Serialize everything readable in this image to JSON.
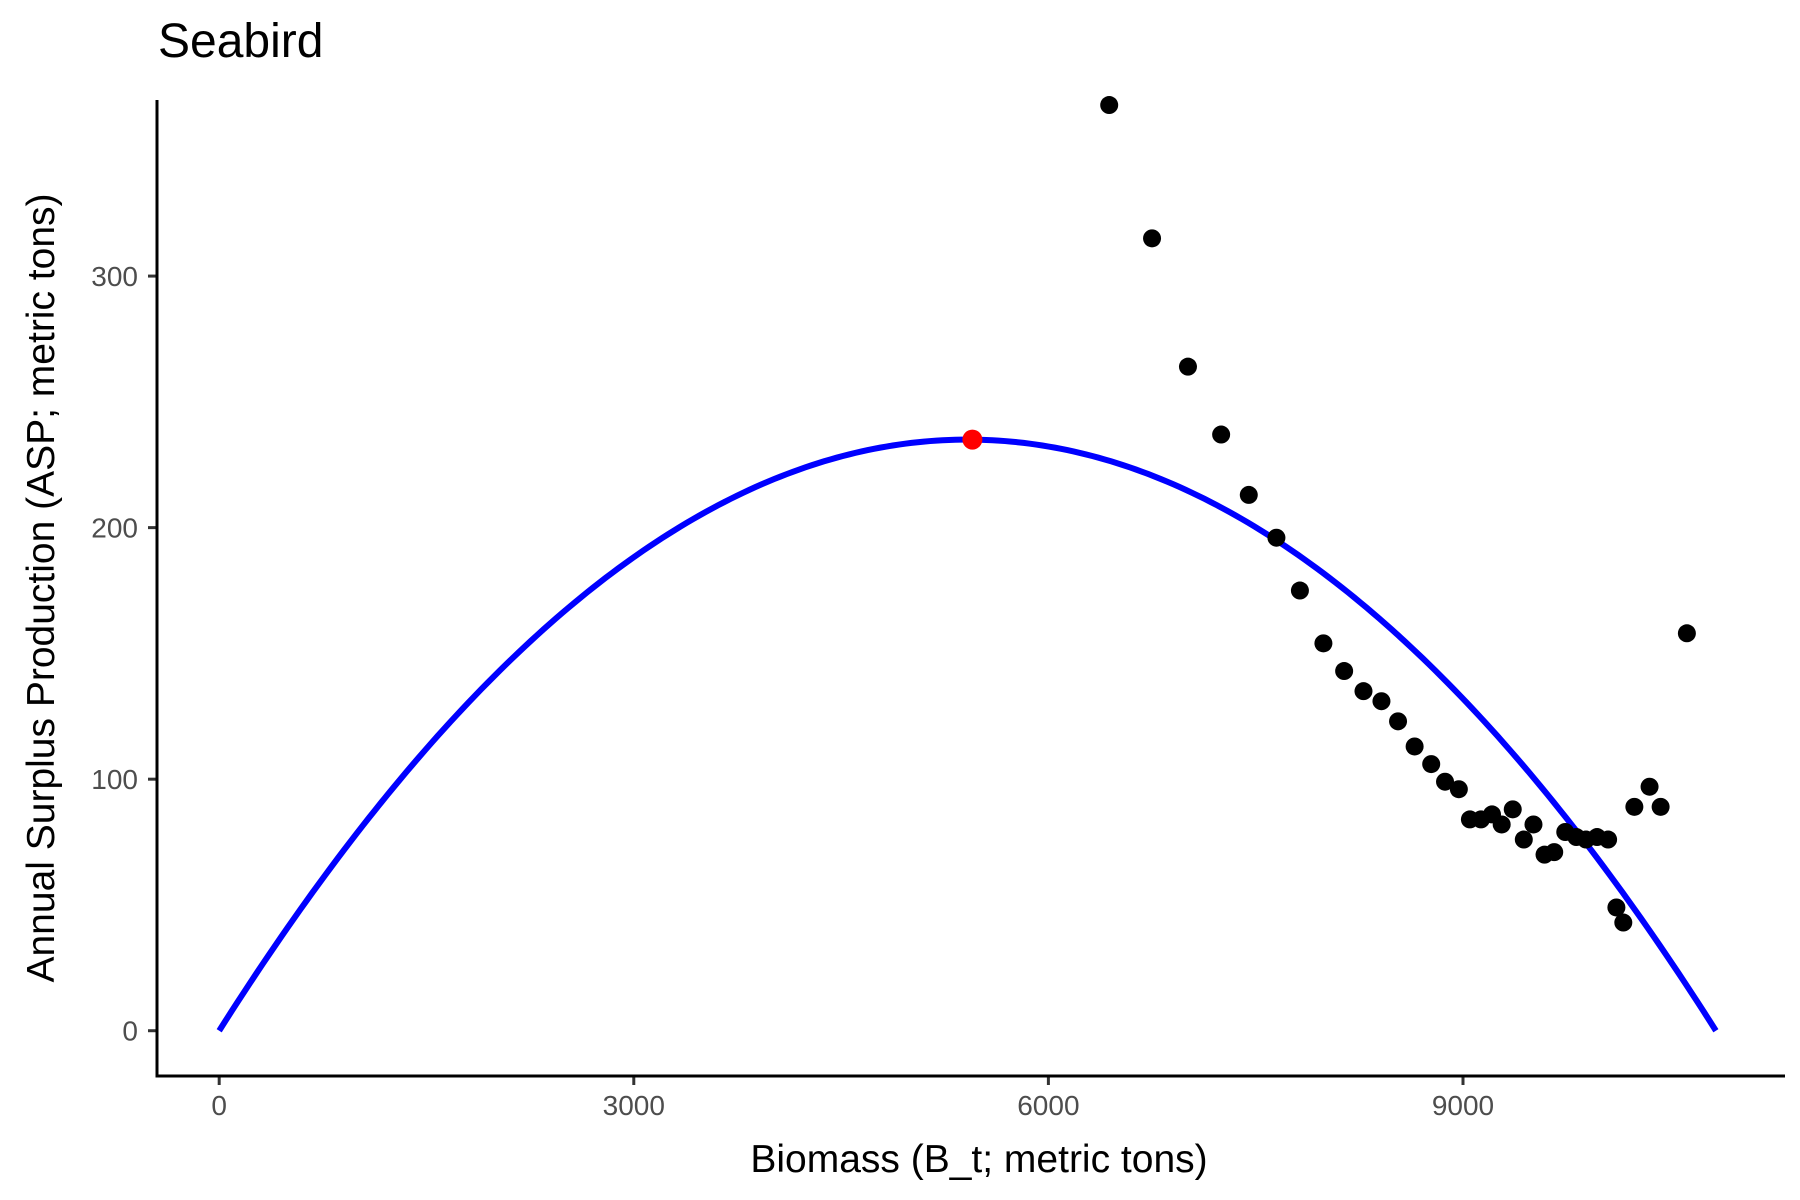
{
  "chart_data": {
    "type": "scatter",
    "title": "Seabird",
    "xlabel": "Biomass (B_t; metric tons)",
    "ylabel": "Annual Surplus Production (ASP; metric tons)",
    "xlim": [
      -450,
      11330
    ],
    "ylim": [
      -18,
      370
    ],
    "x_ticks": [
      0,
      3000,
      6000,
      9000
    ],
    "y_ticks": [
      0,
      100,
      200,
      300
    ],
    "grid": false,
    "curve": {
      "name": "",
      "color": "#0000ff",
      "carrying_capacity": 10830,
      "msy": 235,
      "bmsy": 5415
    },
    "highlight_point": {
      "x": 5450,
      "y": 235,
      "color": "#ff0000"
    },
    "points_color": "#000000",
    "points": [
      {
        "x": 6440,
        "y": 368
      },
      {
        "x": 6750,
        "y": 315
      },
      {
        "x": 7010,
        "y": 264
      },
      {
        "x": 7250,
        "y": 237
      },
      {
        "x": 7450,
        "y": 213
      },
      {
        "x": 7650,
        "y": 196
      },
      {
        "x": 7820,
        "y": 175
      },
      {
        "x": 7990,
        "y": 154
      },
      {
        "x": 8140,
        "y": 143
      },
      {
        "x": 8280,
        "y": 135
      },
      {
        "x": 8410,
        "y": 131
      },
      {
        "x": 8530,
        "y": 123
      },
      {
        "x": 8650,
        "y": 113
      },
      {
        "x": 8770,
        "y": 106
      },
      {
        "x": 8870,
        "y": 99
      },
      {
        "x": 8970,
        "y": 96
      },
      {
        "x": 9050,
        "y": 84
      },
      {
        "x": 9130,
        "y": 84
      },
      {
        "x": 9210,
        "y": 86
      },
      {
        "x": 9280,
        "y": 82
      },
      {
        "x": 9360,
        "y": 88
      },
      {
        "x": 9440,
        "y": 76
      },
      {
        "x": 9510,
        "y": 82
      },
      {
        "x": 9590,
        "y": 70
      },
      {
        "x": 9660,
        "y": 71
      },
      {
        "x": 9740,
        "y": 79
      },
      {
        "x": 9820,
        "y": 77
      },
      {
        "x": 9890,
        "y": 76
      },
      {
        "x": 9970,
        "y": 77
      },
      {
        "x": 10050,
        "y": 76
      },
      {
        "x": 10110,
        "y": 49
      },
      {
        "x": 10160,
        "y": 43
      },
      {
        "x": 10240,
        "y": 89
      },
      {
        "x": 10350,
        "y": 97
      },
      {
        "x": 10430,
        "y": 89
      },
      {
        "x": 10620,
        "y": 158
      }
    ]
  }
}
